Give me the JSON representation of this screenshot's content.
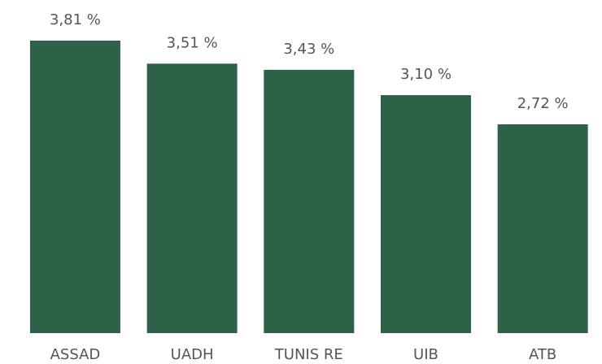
{
  "chart_data": {
    "type": "bar",
    "categories": [
      "ASSAD",
      "UADH",
      "TUNIS RE",
      "UIB",
      "ATB"
    ],
    "values": [
      3.81,
      3.51,
      3.43,
      3.1,
      2.72
    ],
    "value_labels": [
      "3,81 %",
      "3,51 %",
      "3,43 %",
      "3,10 %",
      "2,72 %"
    ],
    "color": "#2d6148"
  }
}
